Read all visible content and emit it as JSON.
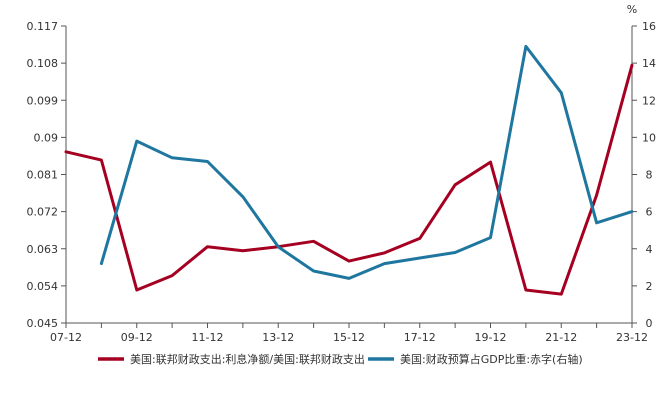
{
  "chart_data": {
    "type": "line",
    "title": "",
    "xlabel": "",
    "ylabel_left": "",
    "ylabel_right": "%",
    "x": [
      "07-12",
      "08-12",
      "09-12",
      "10-12",
      "11-12",
      "12-12",
      "13-12",
      "14-12",
      "15-12",
      "16-12",
      "17-12",
      "18-12",
      "19-12",
      "20-12",
      "21-12",
      "22-12",
      "23-12"
    ],
    "x_tick_labels": [
      "07-12",
      "09-12",
      "11-12",
      "13-12",
      "15-12",
      "17-12",
      "19-12",
      "21-12",
      "23-12"
    ],
    "y_left": {
      "ylim": [
        0.045,
        0.117
      ],
      "ticks": [
        "0.045",
        "0.054",
        "0.063",
        "0.072",
        "0.081",
        "0.09",
        "0.099",
        "0.108",
        "0.117"
      ]
    },
    "y_right": {
      "ylim": [
        0,
        16
      ],
      "ticks": [
        "0",
        "2",
        "4",
        "6",
        "8",
        "10",
        "12",
        "14",
        "16"
      ]
    },
    "grid": false,
    "legend_position": "bottom",
    "series": [
      {
        "name": "美国:联邦财政支出:利息净额/美国:联邦财政支出",
        "axis": "left",
        "color": "#A50021",
        "values": [
          0.0865,
          0.0845,
          0.053,
          0.0565,
          0.0635,
          0.0625,
          0.0635,
          0.0648,
          0.06,
          0.062,
          0.0655,
          0.0785,
          0.084,
          0.053,
          0.052,
          0.076,
          0.1075
        ]
      },
      {
        "name": "美国:财政预算占GDP比重:赤字(右轴)",
        "axis": "right",
        "color": "#1F77A0",
        "values": [
          null,
          3.2,
          9.8,
          8.9,
          8.7,
          6.8,
          4.1,
          2.8,
          2.4,
          3.2,
          3.5,
          3.8,
          4.6,
          14.9,
          12.4,
          5.4,
          6.0
        ]
      }
    ]
  }
}
